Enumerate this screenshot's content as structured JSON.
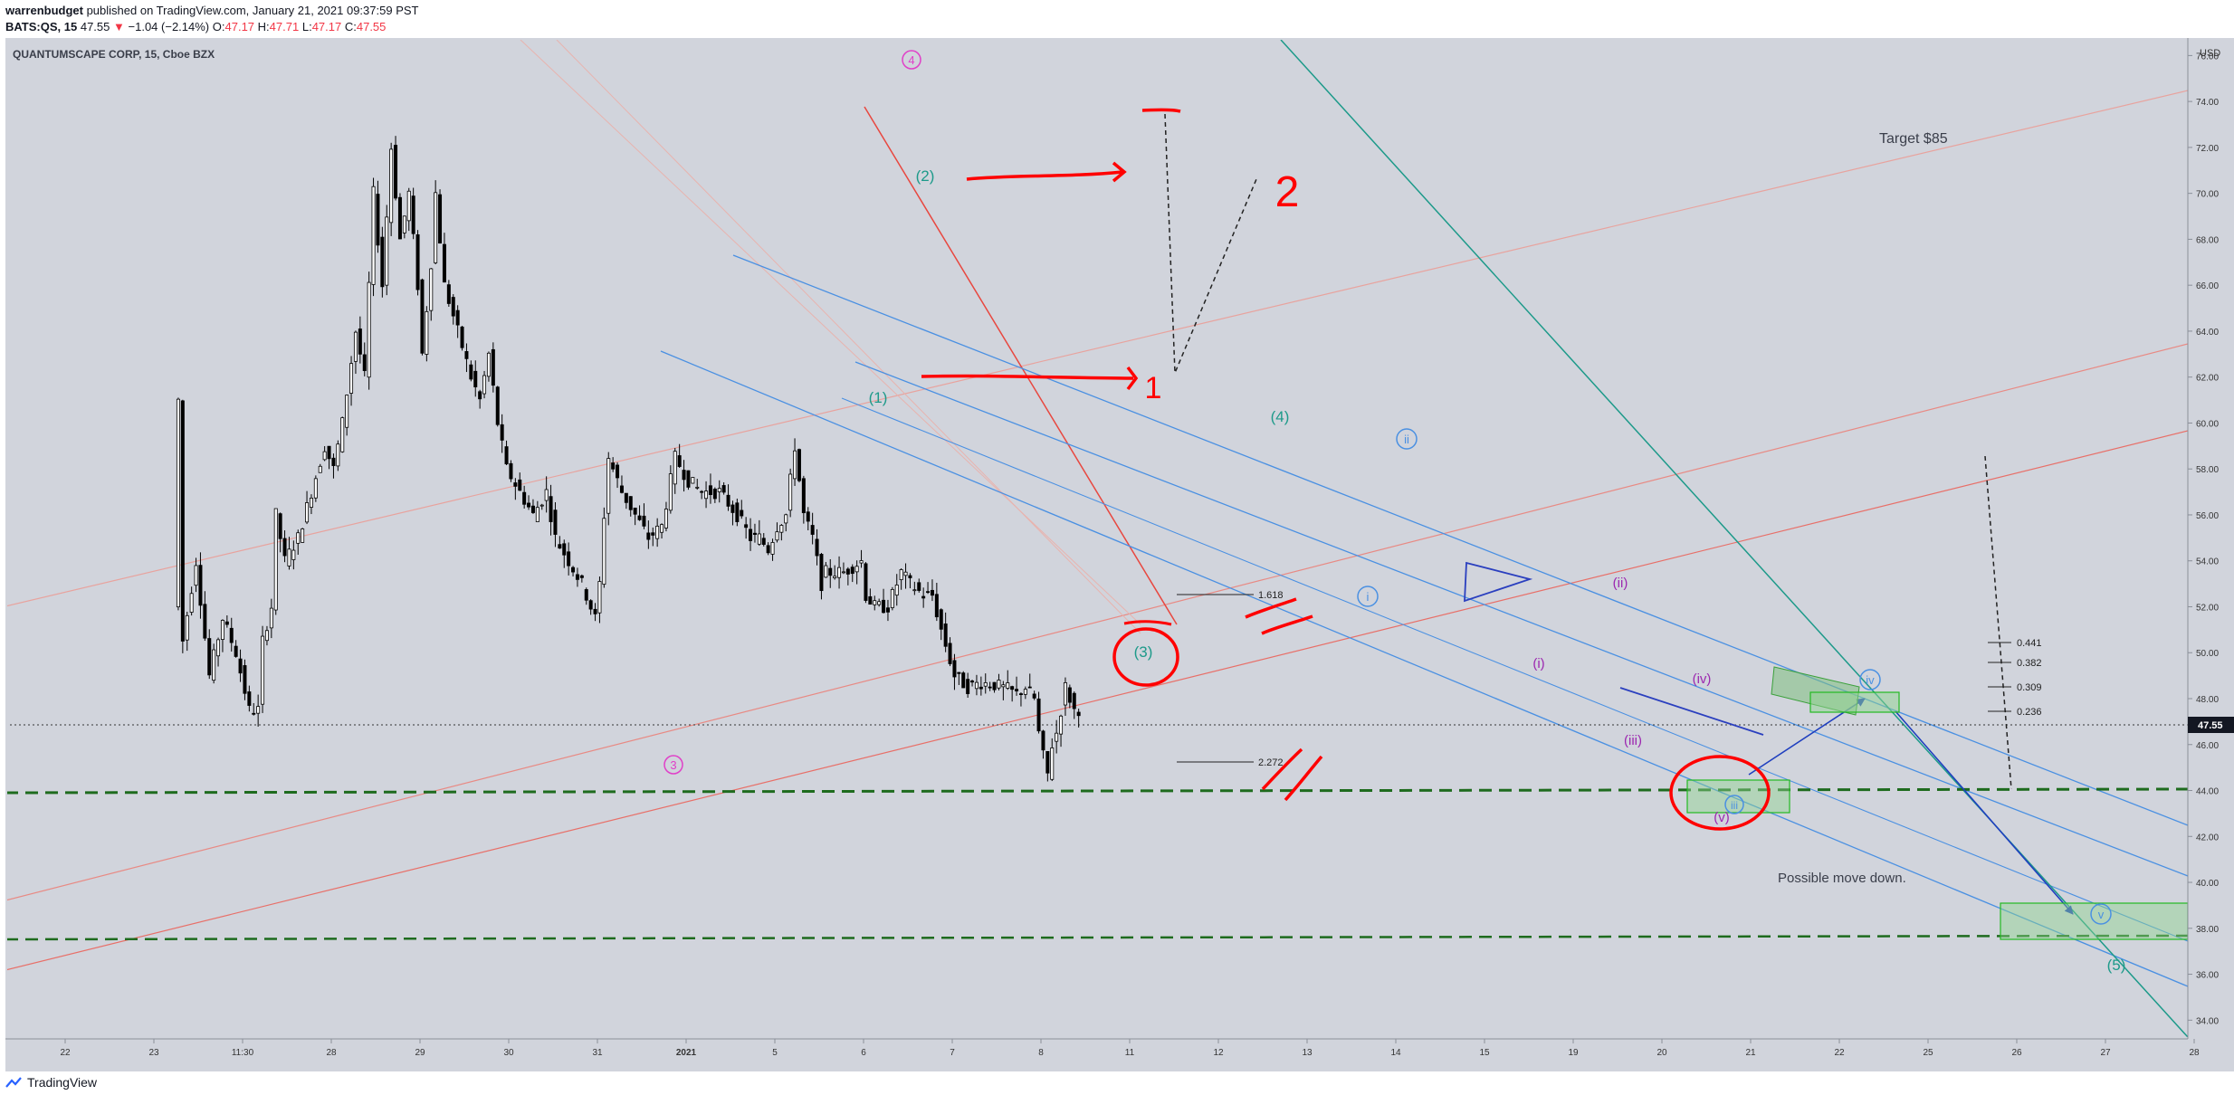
{
  "header": {
    "publisher": "warrenbudget",
    "published_text": " published on TradingView.com, January 21, 2021 09:37:59 PST",
    "symbol": "BATS:QS, 15",
    "price": "47.55",
    "down_arrow": "▼",
    "change": "−1.04 (−2.14%)",
    "o_label": "O:",
    "o_value": "47.17",
    "h_label": "H:",
    "h_value": "47.71",
    "l_label": "L:",
    "l_value": "47.17",
    "c_label": "C:",
    "c_value": "47.55"
  },
  "footer": {
    "logo_icon": "tradingview-logo-icon",
    "logo_text": "TradingView"
  },
  "colors": {
    "pane_bg": "#d1d4dc",
    "candle": "#000000",
    "blue_channel": "#4a90e2",
    "red_line": "#e8473f",
    "teal_line": "#1d9a8a",
    "green_dashed": "#1e6b1e",
    "magenta": "#e040c8",
    "purple": "#9c27b0",
    "annotation_red": "#ff0000"
  },
  "chart_data": {
    "type": "candlestick",
    "title": "QUANTUMSCAPE CORP, 15, Cboe BZX",
    "currency": "USD",
    "last_price": "47.55",
    "ylim": [
      33.5,
      77
    ],
    "y_ticks": [
      "34.00",
      "36.00",
      "38.00",
      "40.00",
      "42.00",
      "44.00",
      "46.00",
      "48.00",
      "50.00",
      "52.00",
      "54.00",
      "56.00",
      "58.00",
      "60.00",
      "62.00",
      "64.00",
      "66.00",
      "68.00",
      "70.00",
      "72.00",
      "74.00",
      "76.00"
    ],
    "x_ticks": [
      "22",
      "23",
      "11:30",
      "28",
      "29",
      "30",
      "31",
      "2021",
      "5",
      "6",
      "7",
      "8",
      "11",
      "12",
      "13",
      "14",
      "15",
      "19",
      "20",
      "21",
      "22",
      "25",
      "26",
      "27",
      "28"
    ],
    "price_path": [
      [
        1.25,
        52
      ],
      [
        1.3,
        61
      ],
      [
        1.35,
        50.5
      ],
      [
        1.5,
        54
      ],
      [
        1.65,
        49
      ],
      [
        1.8,
        51.5
      ],
      [
        1.95,
        50
      ],
      [
        2.1,
        47.5
      ],
      [
        2.2,
        47.5
      ],
      [
        2.25,
        50.5
      ],
      [
        2.35,
        52
      ],
      [
        2.4,
        56
      ],
      [
        2.5,
        54
      ],
      [
        2.65,
        55
      ],
      [
        2.8,
        57
      ],
      [
        2.95,
        59
      ],
      [
        3.05,
        58
      ],
      [
        3.15,
        60
      ],
      [
        3.3,
        64
      ],
      [
        3.4,
        62
      ],
      [
        3.5,
        70
      ],
      [
        3.6,
        66
      ],
      [
        3.7,
        72
      ],
      [
        3.8,
        68
      ],
      [
        3.9,
        70
      ],
      [
        4.0,
        66
      ],
      [
        4.05,
        63
      ],
      [
        4.15,
        67
      ],
      [
        4.2,
        70
      ],
      [
        4.3,
        66
      ],
      [
        4.45,
        64
      ],
      [
        4.6,
        62
      ],
      [
        4.7,
        61
      ],
      [
        4.8,
        63
      ],
      [
        4.9,
        60
      ],
      [
        5.0,
        58
      ],
      [
        5.15,
        57
      ],
      [
        5.3,
        56
      ],
      [
        5.45,
        57
      ],
      [
        5.55,
        55
      ],
      [
        5.7,
        54
      ],
      [
        5.85,
        53
      ],
      [
        5.95,
        52
      ],
      [
        6.0,
        51.5
      ],
      [
        6.05,
        53
      ],
      [
        6.1,
        56
      ],
      [
        6.15,
        58.5
      ],
      [
        6.3,
        57
      ],
      [
        6.45,
        56
      ],
      [
        6.6,
        55
      ],
      [
        6.75,
        55.5
      ],
      [
        6.9,
        58.5
      ],
      [
        7.05,
        57.5
      ],
      [
        7.2,
        57
      ],
      [
        7.4,
        57
      ],
      [
        7.6,
        56
      ],
      [
        7.75,
        55
      ],
      [
        7.85,
        55
      ],
      [
        7.95,
        54.5
      ],
      [
        8.05,
        55.5
      ],
      [
        8.15,
        56
      ],
      [
        8.25,
        59
      ],
      [
        8.35,
        56
      ],
      [
        8.45,
        55
      ],
      [
        8.55,
        53
      ],
      [
        8.6,
        53.5
      ],
      [
        8.8,
        53.5
      ],
      [
        9.0,
        54
      ],
      [
        9.05,
        52.5
      ],
      [
        9.15,
        52
      ],
      [
        9.3,
        52
      ],
      [
        9.45,
        53.5
      ],
      [
        9.55,
        53
      ],
      [
        9.7,
        52.5
      ],
      [
        9.8,
        52.5
      ],
      [
        9.9,
        51
      ],
      [
        10.05,
        49
      ],
      [
        10.2,
        48.5
      ],
      [
        10.35,
        48.7
      ],
      [
        10.5,
        48.6
      ],
      [
        10.65,
        48.4
      ],
      [
        10.75,
        48.2
      ],
      [
        10.85,
        48.5
      ],
      [
        10.95,
        48
      ],
      [
        11.0,
        46.5
      ],
      [
        11.05,
        45.5
      ],
      [
        11.1,
        44.7
      ],
      [
        11.15,
        46
      ],
      [
        11.2,
        46.5
      ],
      [
        11.25,
        47.5
      ],
      [
        11.3,
        48.5
      ],
      [
        11.4,
        47.5
      ],
      [
        11.45,
        47.55
      ]
    ],
    "annotations": {
      "wave_labels_magenta": [
        "4",
        "3"
      ],
      "wave_labels_teal": [
        "(2)",
        "(1)",
        "(3)",
        "(4)",
        "(5)"
      ],
      "wave_labels_purple": [
        "(ii)",
        "(i)",
        "(iv)",
        "(iii)",
        "(v)"
      ],
      "wave_labels_blue_circled": [
        "ii",
        "i",
        "iii",
        "iv",
        "v"
      ],
      "fib_levels": [
        "0.441",
        "0.382",
        "0.309",
        "0.236"
      ],
      "extensions": [
        "1.618",
        "2.272"
      ],
      "handwritten": [
        "1",
        "2"
      ],
      "notes": [
        "Target $85",
        "Possible move down."
      ]
    }
  }
}
